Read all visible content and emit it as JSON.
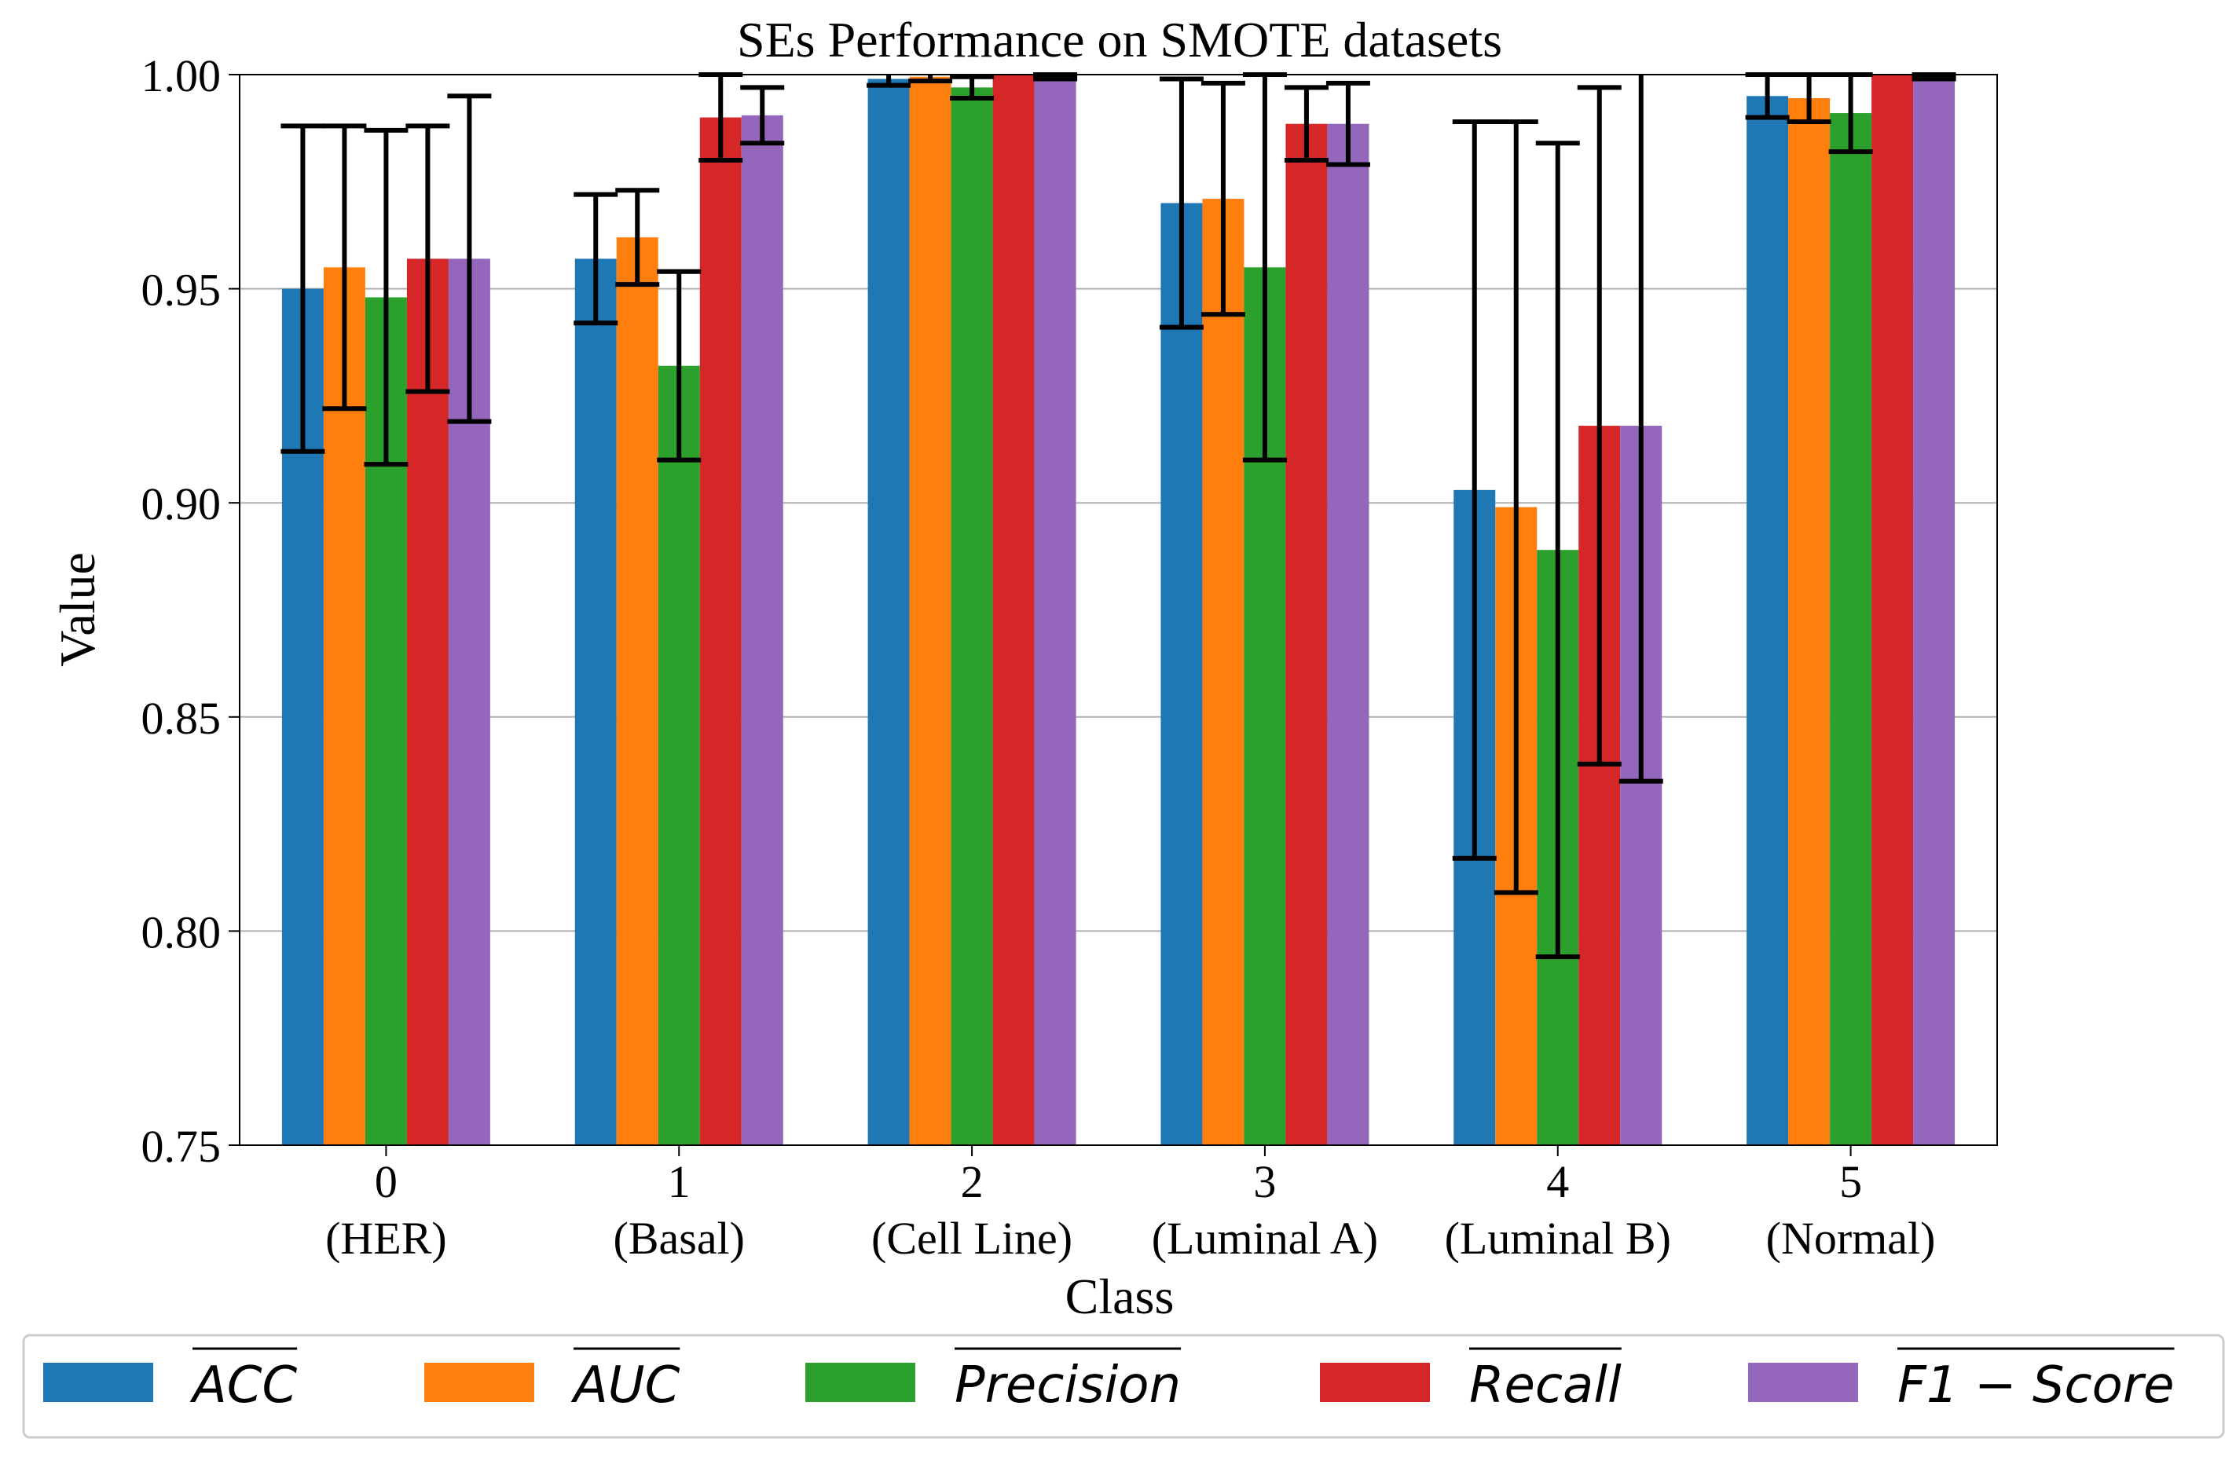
{
  "chart_data": {
    "type": "bar",
    "title": "SEs Performance on SMOTE datasets",
    "xlabel": "Class",
    "ylabel": "Value",
    "ylim": [
      0.75,
      1.0
    ],
    "yticks": [
      "0.75",
      "0.80",
      "0.85",
      "0.90",
      "0.95",
      "1.00"
    ],
    "grid": true,
    "legend_position": "bottom",
    "categories": [
      {
        "id": "0",
        "name": "(HER)"
      },
      {
        "id": "1",
        "name": "(Basal)"
      },
      {
        "id": "2",
        "name": "(Cell Line)"
      },
      {
        "id": "3",
        "name": "(Luminal A)"
      },
      {
        "id": "4",
        "name": "(Luminal B)"
      },
      {
        "id": "5",
        "name": "(Normal)"
      }
    ],
    "series": [
      {
        "name": "ACC",
        "color": "#1f77b4",
        "values": [
          0.95,
          0.957,
          0.999,
          0.97,
          0.903,
          0.995
        ],
        "errors": [
          0.038,
          0.015,
          0.0015,
          0.029,
          0.086,
          0.005
        ]
      },
      {
        "name": "AUC",
        "color": "#ff7f0e",
        "values": [
          0.955,
          0.962,
          0.9995,
          0.971,
          0.899,
          0.9945
        ],
        "errors": [
          0.033,
          0.011,
          0.001,
          0.027,
          0.09,
          0.0055
        ]
      },
      {
        "name": "Precision",
        "color": "#2ca02c",
        "values": [
          0.948,
          0.932,
          0.997,
          0.955,
          0.889,
          0.991
        ],
        "errors": [
          0.039,
          0.022,
          0.0025,
          0.045,
          0.095,
          0.009
        ]
      },
      {
        "name": "Recall",
        "color": "#d62728",
        "values": [
          0.957,
          0.99,
          1.0,
          0.9885,
          0.918,
          1.0
        ],
        "errors": [
          0.031,
          0.01,
          0.0,
          0.0085,
          0.079,
          0.0
        ]
      },
      {
        "name": "F1 − Score",
        "color": "#9467bd",
        "values": [
          0.957,
          0.9905,
          0.9995,
          0.9885,
          0.918,
          0.9995
        ],
        "errors": [
          0.038,
          0.0065,
          0.0005,
          0.0095,
          0.083,
          0.0005
        ]
      }
    ]
  }
}
